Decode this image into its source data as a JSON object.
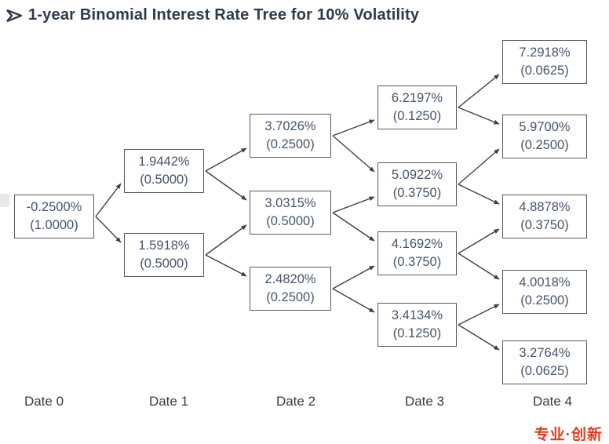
{
  "page": {
    "title": "1-year Binomial Interest Rate Tree for 10% Volatility"
  },
  "icons": {
    "title_bullet": "arrowhead-right"
  },
  "colors": {
    "title": "#2d3a4b",
    "node_text": "#44546a",
    "box_border": "#595959",
    "line": "#404040",
    "brand_red": "#e63b22"
  },
  "tree": {
    "columns": [
      {
        "label": "Date 0",
        "nodes": [
          {
            "rate": "-0.2500%",
            "prob": "(1.0000)"
          }
        ]
      },
      {
        "label": "Date 1",
        "nodes": [
          {
            "rate": "1.9442%",
            "prob": "(0.5000)"
          },
          {
            "rate": "1.5918%",
            "prob": "(0.5000)"
          }
        ]
      },
      {
        "label": "Date 2",
        "nodes": [
          {
            "rate": "3.7026%",
            "prob": "(0.2500)"
          },
          {
            "rate": "3.0315%",
            "prob": "(0.5000)"
          },
          {
            "rate": "2.4820%",
            "prob": "(0.2500)"
          }
        ]
      },
      {
        "label": "Date 3",
        "nodes": [
          {
            "rate": "6.2197%",
            "prob": "(0.1250)"
          },
          {
            "rate": "5.0922%",
            "prob": "(0.3750)"
          },
          {
            "rate": "4.1692%",
            "prob": "(0.3750)"
          },
          {
            "rate": "3.4134%",
            "prob": "(0.1250)"
          }
        ]
      },
      {
        "label": "Date 4",
        "nodes": [
          {
            "rate": "7.2918%",
            "prob": "(0.0625)"
          },
          {
            "rate": "5.9700%",
            "prob": "(0.2500)"
          },
          {
            "rate": "4.8878%",
            "prob": "(0.3750)"
          },
          {
            "rate": "4.0018%",
            "prob": "(0.2500)"
          },
          {
            "rate": "3.2764%",
            "prob": "(0.0625)"
          }
        ]
      }
    ]
  },
  "footer": {
    "watermark": "专业·创新"
  }
}
